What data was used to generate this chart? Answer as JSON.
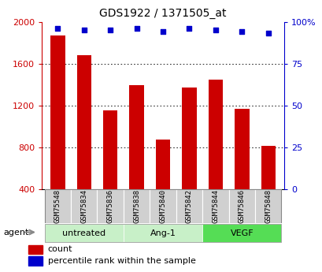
{
  "title": "GDS1922 / 1371505_at",
  "samples": [
    "GSM75548",
    "GSM75834",
    "GSM75836",
    "GSM75838",
    "GSM75840",
    "GSM75842",
    "GSM75844",
    "GSM75846",
    "GSM75848"
  ],
  "counts": [
    1870,
    1680,
    1150,
    1390,
    870,
    1370,
    1450,
    1170,
    810
  ],
  "percentiles": [
    96,
    95,
    95,
    96,
    94,
    96,
    95,
    94,
    93
  ],
  "groups": [
    {
      "label": "untreated",
      "start": 0,
      "end": 3,
      "color": "#c8f0c8"
    },
    {
      "label": "Ang-1",
      "start": 3,
      "end": 6,
      "color": "#c8f0c8"
    },
    {
      "label": "VEGF",
      "start": 6,
      "end": 9,
      "color": "#55dd55"
    }
  ],
  "bar_color": "#cc0000",
  "dot_color": "#0000cc",
  "left_ylim": [
    400,
    2000
  ],
  "left_yticks": [
    400,
    800,
    1200,
    1600,
    2000
  ],
  "right_ylim": [
    0,
    100
  ],
  "right_yticks": [
    0,
    25,
    50,
    75,
    100
  ],
  "right_yticklabels": [
    "0",
    "25",
    "50",
    "75",
    "100%"
  ],
  "legend_count_label": "count",
  "legend_pct_label": "percentile rank within the sample",
  "agent_label": "agent",
  "sample_box_color": "#d0d0d0",
  "bar_bottom": 400
}
